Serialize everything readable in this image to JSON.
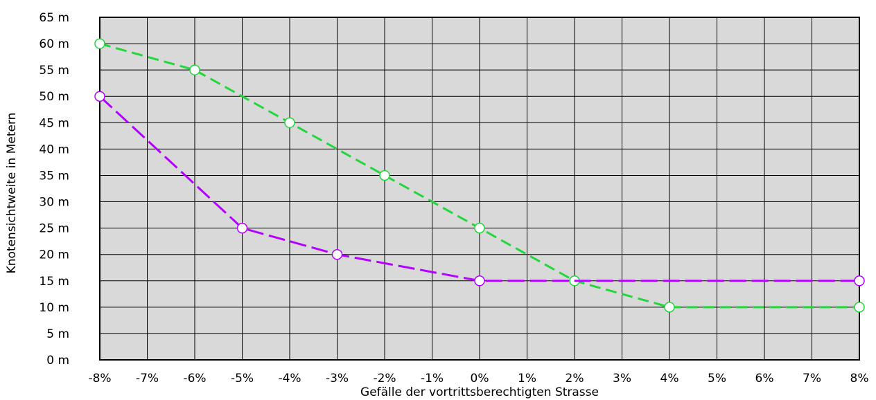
{
  "chart_data": {
    "type": "line",
    "title": "",
    "xlabel": "Gefälle der vortrittsberechtigten Strasse",
    "ylabel": "Knotensichtweite in Metern",
    "x_ticks": [
      -8,
      -7,
      -6,
      -5,
      -4,
      -3,
      -2,
      -1,
      0,
      1,
      2,
      3,
      4,
      5,
      6,
      7,
      8
    ],
    "x_tick_labels": [
      "-8%",
      "-7%",
      "-6%",
      "-5%",
      "-4%",
      "-3%",
      "-2%",
      "-1%",
      "0%",
      "1%",
      "2%",
      "3%",
      "4%",
      "5%",
      "6%",
      "7%",
      "8%"
    ],
    "y_ticks": [
      0,
      5,
      10,
      15,
      20,
      25,
      30,
      35,
      40,
      45,
      50,
      55,
      60,
      65
    ],
    "y_tick_labels": [
      "0 m",
      "5 m",
      "10 m",
      "15 m",
      "20 m",
      "25 m",
      "30 m",
      "35 m",
      "40 m",
      "45 m",
      "50 m",
      "55 m",
      "60 m",
      "65 m"
    ],
    "xlim": [
      -8,
      8
    ],
    "ylim": [
      0,
      65
    ],
    "grid": true,
    "colors": {
      "plot_background": "#d9d9d9",
      "grid": "#000000",
      "frame": "#000000",
      "marker_fill": "#ffffff"
    },
    "series": [
      {
        "color": "#22d63c",
        "x": [
          -8,
          -6,
          -4,
          -2,
          0,
          2,
          4,
          8
        ],
        "y": [
          60,
          55,
          45,
          35,
          25,
          15,
          10,
          10
        ]
      },
      {
        "color": "#b300ff",
        "x": [
          -8,
          -5,
          -3,
          0,
          8
        ],
        "y": [
          50,
          25,
          20,
          15,
          15
        ]
      }
    ]
  }
}
